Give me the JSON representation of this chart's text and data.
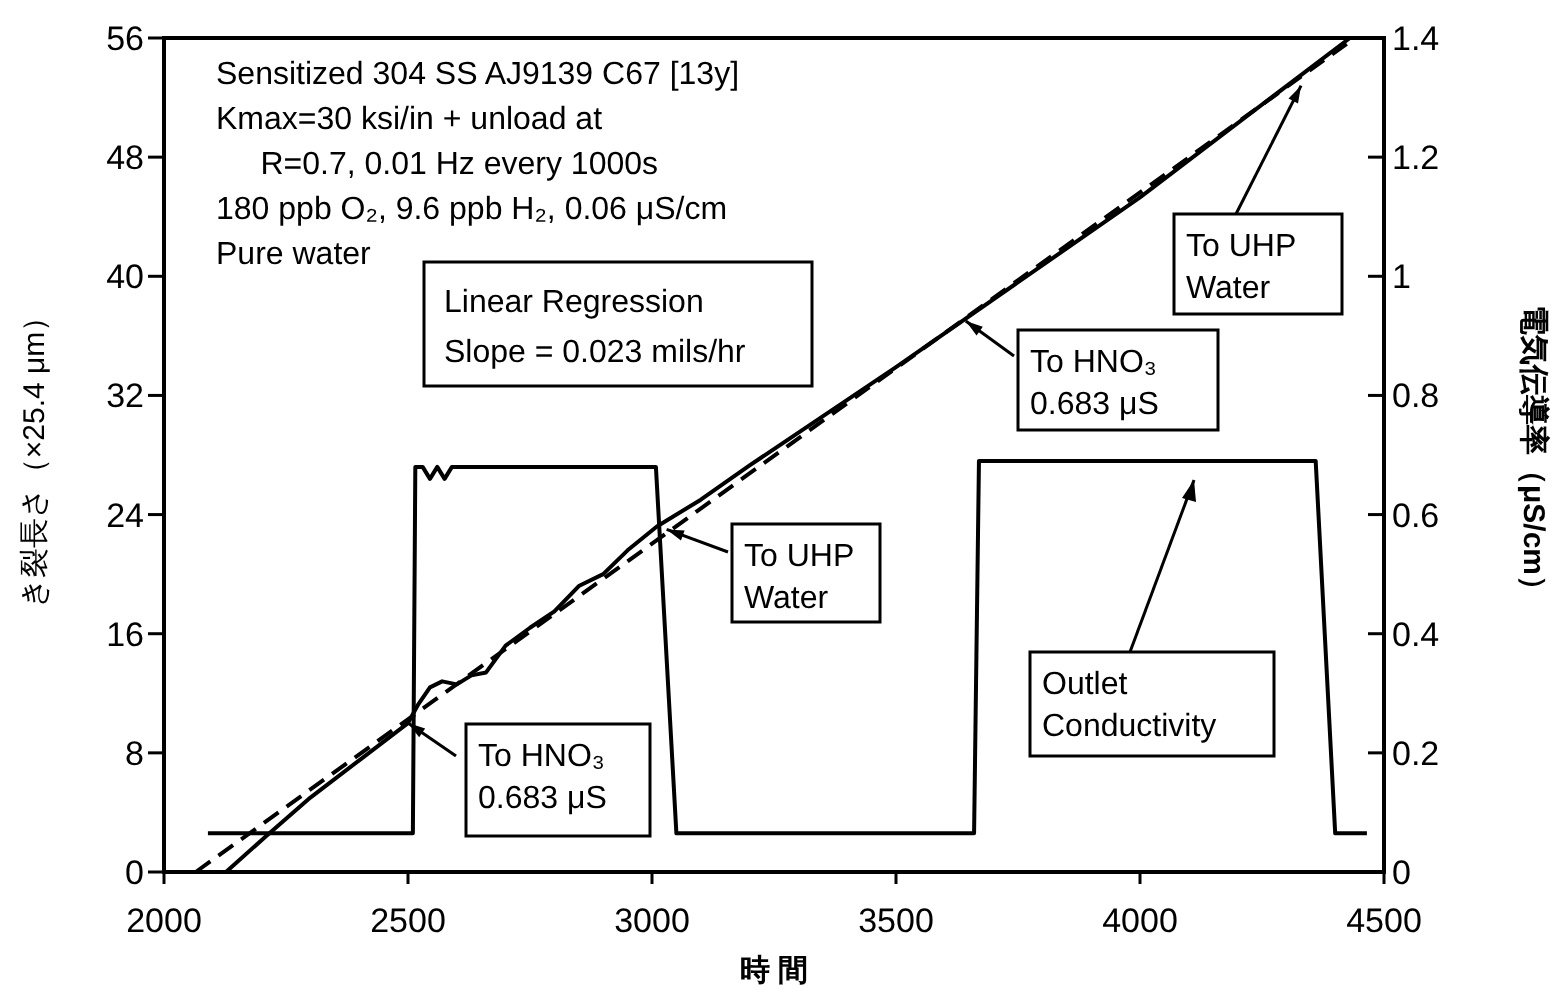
{
  "chart_data": {
    "type": "line",
    "xlabel": "時 間",
    "ylabel": "き裂長さ（×25.4 μm）",
    "y2label": "電気伝導率（μS/cm）",
    "xlim": [
      2000,
      4500
    ],
    "xticks": [
      2000,
      2500,
      3000,
      3500,
      4000,
      4500
    ],
    "ylim": [
      0,
      56
    ],
    "yticks": [
      0,
      8,
      16,
      24,
      32,
      40,
      48,
      56
    ],
    "y2lim": [
      0,
      1.4
    ],
    "y2ticks": [
      0,
      0.2,
      0.4,
      0.6,
      0.8,
      1,
      1.2,
      1.4
    ],
    "grid": false,
    "series": [
      {
        "color": "#000000",
        "line_style": "solid",
        "x": [
          2127,
          2209,
          2300,
          2400,
          2500,
          2520,
          2545,
          2570,
          2600,
          2630,
          2660,
          2700,
          2750,
          2800,
          2850,
          2900,
          2950,
          3010,
          3100,
          3200,
          3500,
          4000,
          4430
        ],
        "values": [
          0,
          2.4,
          5,
          7.5,
          10,
          11.2,
          12.4,
          12.8,
          12.6,
          13.2,
          13.4,
          15.2,
          16.4,
          17.5,
          19.2,
          20,
          21.6,
          23.2,
          25,
          27.3,
          33.9,
          45.3,
          56
        ]
      },
      {
        "color": "#000000",
        "line_style": "dashed",
        "x": [
          2065,
          4440
        ],
        "values": [
          0,
          56
        ]
      },
      {
        "color": "#000000",
        "line_style": "solid",
        "axis": "y2",
        "x": [
          2090,
          2510,
          2515,
          2530,
          2545,
          2560,
          2575,
          2590,
          3008,
          3050,
          3660,
          3670,
          4360,
          4400,
          4465
        ],
        "values": [
          0.065,
          0.065,
          0.68,
          0.68,
          0.66,
          0.68,
          0.66,
          0.68,
          0.68,
          0.065,
          0.065,
          0.69,
          0.69,
          0.065,
          0.065
        ]
      }
    ],
    "annotations": [
      "Sensitized 304 SS AJ9139 C67 [13y]\nKmax=30 ksi/in + unload at\n     R=0.7, 0.01 Hz every 1000s\n180 ppb O₂, 9.6 ppb H₂, 0.06 μS/cm\nPure water",
      "Linear Regression\nSlope = 0.023 mils/hr",
      {
        "text": "To HNO₃\n0.683 μS",
        "x": 2500,
        "y": 10
      },
      {
        "text": "To UHP\nWater",
        "x": 3030,
        "y": 23
      },
      {
        "text": "To HNO₃\n0.683 μS",
        "x": 3643,
        "y": 37
      },
      {
        "text": "To UHP\nWater",
        "x": 4330,
        "y": 52.8
      },
      "Outlet\nConductivity"
    ]
  }
}
